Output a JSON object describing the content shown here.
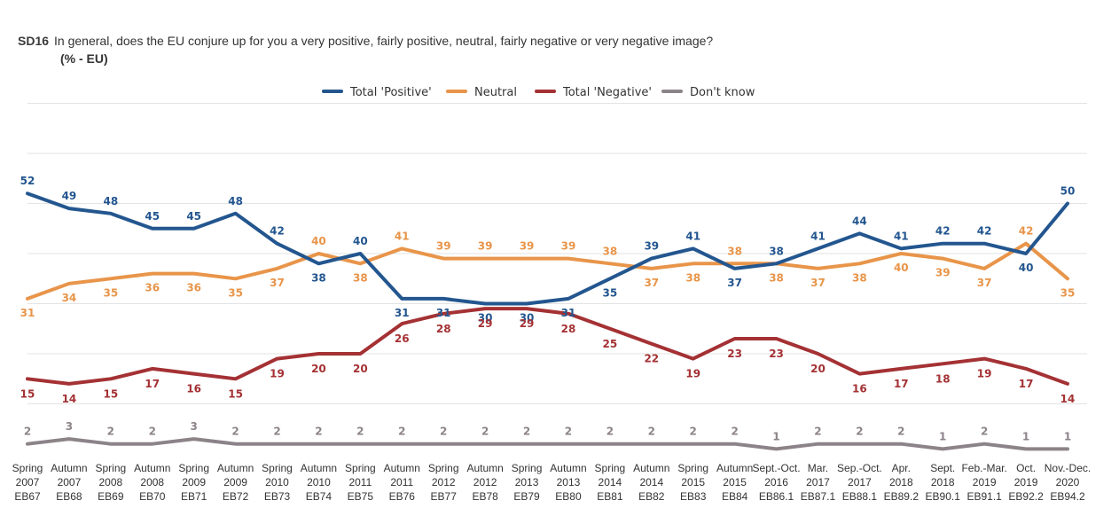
{
  "header": {
    "code": "SD16",
    "question": "In general, does the EU conjure up for you a very positive, fairly positive, neutral, fairly negative or very negative image?",
    "unit": "(% - EU)"
  },
  "chart_data": {
    "type": "line",
    "title": "In general, does the EU conjure up for you a very positive, fairly positive, neutral, fairly negative or very negative image?",
    "xlabel": "",
    "ylabel": "(% - EU)",
    "ylim": [
      0,
      70
    ],
    "grid": true,
    "legend": "top-center",
    "categories": [
      [
        "Spring",
        "2007",
        "EB67"
      ],
      [
        "Autumn",
        "2007",
        "EB68"
      ],
      [
        "Spring",
        "2008",
        "EB69"
      ],
      [
        "Autumn",
        "2008",
        "EB70"
      ],
      [
        "Spring",
        "2009",
        "EB71"
      ],
      [
        "Autumn",
        "2009",
        "EB72"
      ],
      [
        "Spring",
        "2010",
        "EB73"
      ],
      [
        "Autumn",
        "2010",
        "EB74"
      ],
      [
        "Spring",
        "2011",
        "EB75"
      ],
      [
        "Autumn",
        "2011",
        "EB76"
      ],
      [
        "Spring",
        "2012",
        "EB77"
      ],
      [
        "Autumn",
        "2012",
        "EB78"
      ],
      [
        "Spring",
        "2013",
        "EB79"
      ],
      [
        "Autumn",
        "2013",
        "EB80"
      ],
      [
        "Spring",
        "2014",
        "EB81"
      ],
      [
        "Autumn",
        "2014",
        "EB82"
      ],
      [
        "Spring",
        "2015",
        "EB83"
      ],
      [
        "Autumn",
        "2015",
        "EB84"
      ],
      [
        "Sept.-Oct.",
        "2016",
        "EB86.1"
      ],
      [
        "Mar.",
        "2017",
        "EB87.1"
      ],
      [
        "Sep.-Oct.",
        "2017",
        "EB88.1"
      ],
      [
        "Apr.",
        "2018",
        "EB89.2"
      ],
      [
        "Sept.",
        "2018",
        "EB90.1"
      ],
      [
        "Feb.-Mar.",
        "2019",
        "EB91.1"
      ],
      [
        "Oct.",
        "2019",
        "EB92.2"
      ],
      [
        "Nov.-Dec.",
        "2020",
        "EB94.2"
      ]
    ],
    "series": [
      {
        "name": "Total 'Positive'",
        "color": "#23568f",
        "values": [
          52,
          49,
          48,
          45,
          45,
          48,
          42,
          38,
          40,
          31,
          31,
          30,
          30,
          31,
          35,
          39,
          41,
          37,
          38,
          41,
          44,
          41,
          42,
          42,
          40,
          50
        ]
      },
      {
        "name": "Neutral",
        "color": "#e8954a",
        "values": [
          31,
          34,
          35,
          36,
          36,
          35,
          37,
          40,
          38,
          41,
          39,
          39,
          39,
          39,
          38,
          37,
          38,
          38,
          38,
          37,
          38,
          40,
          39,
          37,
          42,
          35
        ]
      },
      {
        "name": "Total 'Negative'",
        "color": "#a43134",
        "values": [
          15,
          14,
          15,
          17,
          16,
          15,
          19,
          20,
          20,
          26,
          28,
          29,
          29,
          28,
          25,
          22,
          19,
          23,
          23,
          20,
          16,
          17,
          18,
          19,
          17,
          14
        ]
      },
      {
        "name": "Don't know",
        "color": "#8c8389",
        "values": [
          2,
          3,
          2,
          2,
          3,
          2,
          2,
          2,
          2,
          2,
          2,
          2,
          2,
          2,
          2,
          2,
          2,
          2,
          1,
          2,
          2,
          2,
          1,
          2,
          1,
          1
        ]
      }
    ]
  }
}
